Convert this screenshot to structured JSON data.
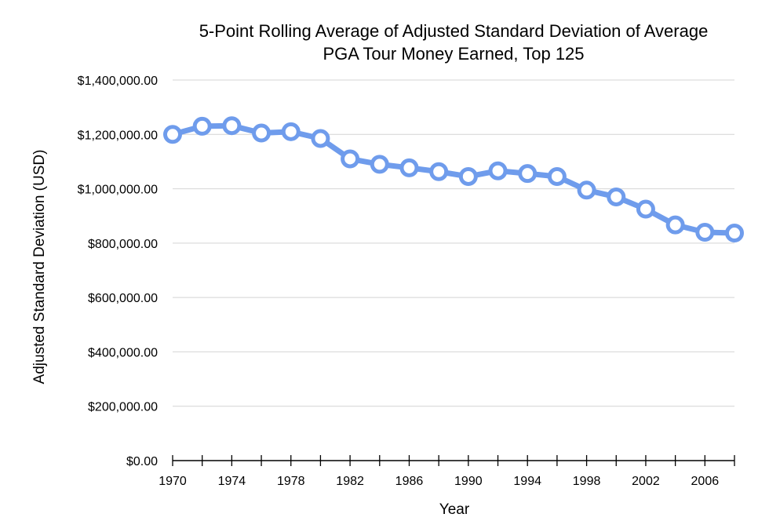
{
  "chart_data": {
    "type": "line",
    "title": "5-Point Rolling Average of Adjusted Standard Deviation of Average PGA Tour Money Earned, Top 125",
    "title_lines": [
      "5-Point Rolling Average of Adjusted Standard Deviation of Average",
      "PGA Tour Money Earned, Top 125"
    ],
    "xlabel": "Year",
    "ylabel": "Adjusted Standard Deviation (USD)",
    "ylim": [
      0,
      1400000
    ],
    "y_ticks": [
      0,
      200000,
      400000,
      600000,
      800000,
      1000000,
      1200000,
      1400000
    ],
    "y_tick_labels": [
      "$0.00",
      "$200,000.00",
      "$400,000.00",
      "$600,000.00",
      "$800,000.00",
      "$1,000,000.00",
      "$1,200,000.00",
      "$1,400,000.00"
    ],
    "x_tick_labels": [
      "1970",
      "1974",
      "1978",
      "1982",
      "1986",
      "1990",
      "1994",
      "1998",
      "2002",
      "2006"
    ],
    "x_tick_label_years": [
      1970,
      1974,
      1978,
      1982,
      1986,
      1990,
      1994,
      1998,
      2002,
      2006
    ],
    "xlim": [
      1970,
      2008
    ],
    "grid": true,
    "legend": "none",
    "series": [
      {
        "color": "#6f9cec",
        "x": [
          1970,
          1972,
          1974,
          1976,
          1978,
          1980,
          1982,
          1984,
          1986,
          1988,
          1990,
          1992,
          1994,
          1996,
          1998,
          2000,
          2002,
          2004,
          2006,
          2008
        ],
        "values": [
          1200000,
          1230000,
          1232000,
          1205000,
          1210000,
          1185000,
          1110000,
          1090000,
          1077000,
          1063000,
          1045000,
          1066000,
          1056000,
          1045000,
          995000,
          970000,
          925000,
          867000,
          840000,
          837000
        ]
      }
    ]
  }
}
